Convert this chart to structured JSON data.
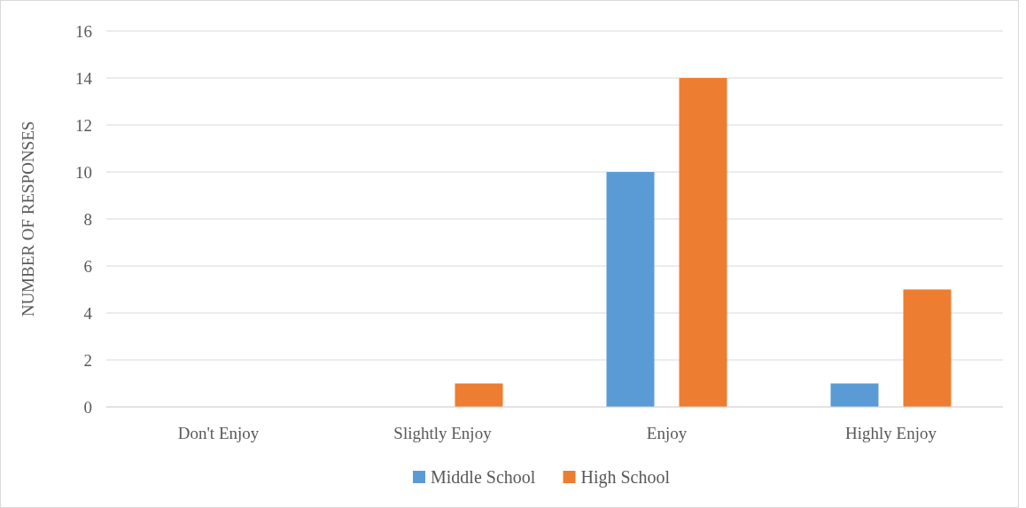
{
  "chart_data": {
    "type": "bar",
    "ylabel": "NUMBER OF RESPONSES",
    "categories": [
      "Don't Enjoy",
      "Slightly Enjoy",
      "Enjoy",
      "Highly Enjoy"
    ],
    "series": [
      {
        "name": "Middle School",
        "color": "#5b9bd5",
        "values": [
          0,
          0,
          10,
          1
        ]
      },
      {
        "name": "High School",
        "color": "#ed7d31",
        "values": [
          0,
          1,
          14,
          5
        ]
      }
    ],
    "ylim": [
      0,
      16
    ],
    "yticks": [
      0,
      2,
      4,
      6,
      8,
      10,
      12,
      14,
      16
    ],
    "grid": "y",
    "legend": "bottom"
  }
}
